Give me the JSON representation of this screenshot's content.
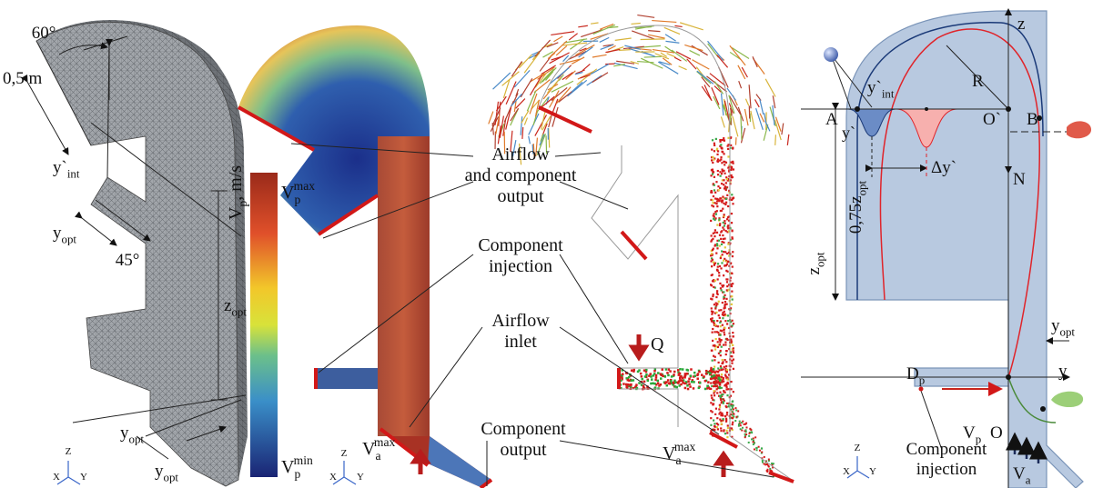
{
  "labels": [
    {
      "base": "60°"
    },
    {
      "base": "0,5 m"
    },
    {
      "base": "y`",
      "sub": "int"
    },
    {
      "base": "y",
      "sub": "opt"
    },
    {
      "base": "45°"
    },
    {
      "base": "z",
      "sub": "opt"
    },
    {
      "base": "y",
      "sub": "opt"
    },
    {
      "base": "y",
      "sub": "opt"
    },
    {
      "base": "Z"
    },
    {
      "base": "X"
    },
    {
      "base": "Y"
    },
    {
      "base": "V",
      "sub": "p",
      "tail": ", m/s"
    },
    {
      "base": "V",
      "sub": "p",
      "sup": "max"
    },
    {
      "base": "V",
      "sub": "p",
      "sup": "min"
    },
    {
      "base": "Z"
    },
    {
      "base": "X"
    },
    {
      "base": "Y"
    },
    {
      "lines": [
        "Airflow",
        "and component",
        "output"
      ]
    },
    {
      "lines": [
        "Component",
        "injection"
      ]
    },
    {
      "lines": [
        "Airflow",
        "inlet"
      ]
    },
    {
      "lines": [
        "Component",
        "output"
      ]
    },
    {
      "base": "V",
      "sub": "a",
      "sup": "max"
    },
    {
      "base": "V",
      "sub": "a",
      "sup": "max"
    },
    {
      "base": "Q"
    },
    {
      "base": "Z"
    },
    {
      "base": "X"
    },
    {
      "base": "Y"
    },
    {
      "base": "R"
    },
    {
      "base": "A"
    },
    {
      "base": "O`"
    },
    {
      "base": "B"
    },
    {
      "base": "y`",
      "sub": "int"
    },
    {
      "base": "y`"
    },
    {
      "base": "Δy`"
    },
    {
      "base": "N"
    },
    {
      "base": "0,75z",
      "sub": "opt"
    },
    {
      "base": "z",
      "sub": "opt"
    },
    {
      "base": "y",
      "sub": "opt"
    },
    {
      "base": "D",
      "sub": "p"
    },
    {
      "base": "V",
      "sub": "p"
    },
    {
      "base": "O"
    },
    {
      "base": "y"
    },
    {
      "base": "z"
    },
    {
      "lines": [
        "Component",
        "injection"
      ]
    },
    {
      "base": "V",
      "sub": "a"
    }
  ]
}
